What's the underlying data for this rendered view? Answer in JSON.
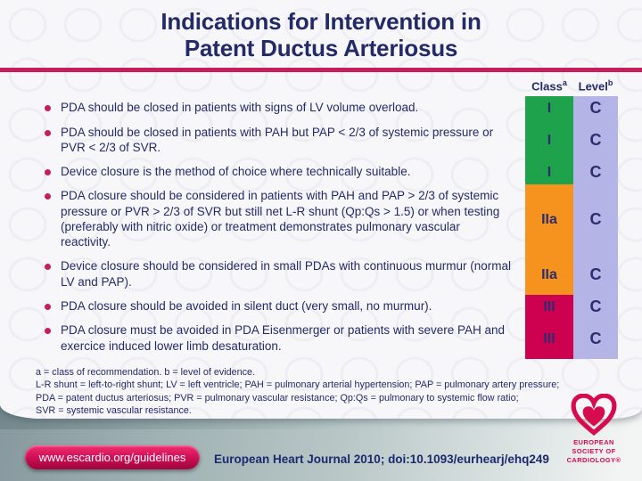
{
  "slide": {
    "title_line1": "Indications for Intervention in",
    "title_line2": "Patent Ductus Arteriosus"
  },
  "table": {
    "col_class_label": "Class",
    "col_class_sup": "a",
    "col_level_label": "Level",
    "col_level_sup": "b",
    "rows": [
      {
        "text": "PDA should be closed in patients with signs of LV volume overload.",
        "class": "I",
        "level": "C",
        "group": "green"
      },
      {
        "text": "PDA should be closed in patients with PAH but PAP < 2/3 of systemic pressure or PVR < 2/3 of SVR.",
        "class": "I",
        "level": "C",
        "group": "green"
      },
      {
        "text": "Device closure is the method of choice where technically suitable.",
        "class": "I",
        "level": "C",
        "group": "green"
      },
      {
        "text": "PDA closure should be considered in patients with PAH and PAP > 2/3 of systemic pressure or PVR > 2/3 of SVR but still net L-R shunt (Qp:Qs > 1.5) or when testing (preferably with nitric oxide) or treatment demonstrates pulmonary vascular reactivity.",
        "class": "IIa",
        "level": "C",
        "group": "orange"
      },
      {
        "text": "Device closure should be considered in small PDAs with continuous murmur (normal LV and PAP).",
        "class": "IIa",
        "level": "C",
        "group": "orange"
      },
      {
        "text": "PDA closure should be avoided in silent duct (very small, no murmur).",
        "class": "III",
        "level": "C",
        "group": "red"
      },
      {
        "text": "PDA closure must be avoided in PDA Eisenmerger or patients with severe PAH and exercice induced lower limb desaturation.",
        "class": "III",
        "level": "C",
        "group": "red"
      }
    ]
  },
  "footnotes": [
    "a = class of recommendation. b = level of evidence.",
    "L-R shunt = left-to-right shunt; LV = left ventricle; PAH = pulmonary arterial hypertension; PAP = pulmonary artery pressure;",
    "PDA = patent ductus arteriosus; PVR = pulmonary vascular resistance; Qp:Qs = pulmonary to systemic flow ratio;",
    "SVR = systemic vascular resistance."
  ],
  "footer": {
    "link_button": "www.escardio.org/guidelines",
    "citation": "European Heart Journal 2010; doi:10.1093/eurhearj/ehq249",
    "logo_text_lines": [
      "EUROPEAN",
      "SOCIETY OF",
      "CARDIOLOGY®"
    ]
  },
  "colors": {
    "navy": "#232a68",
    "crimson": "#c41f5c",
    "green": "#1fa24c",
    "orange": "#f6921e",
    "classred": "#ce0050",
    "lavender": "#b4b4e6",
    "escred": "#d60c4e"
  }
}
